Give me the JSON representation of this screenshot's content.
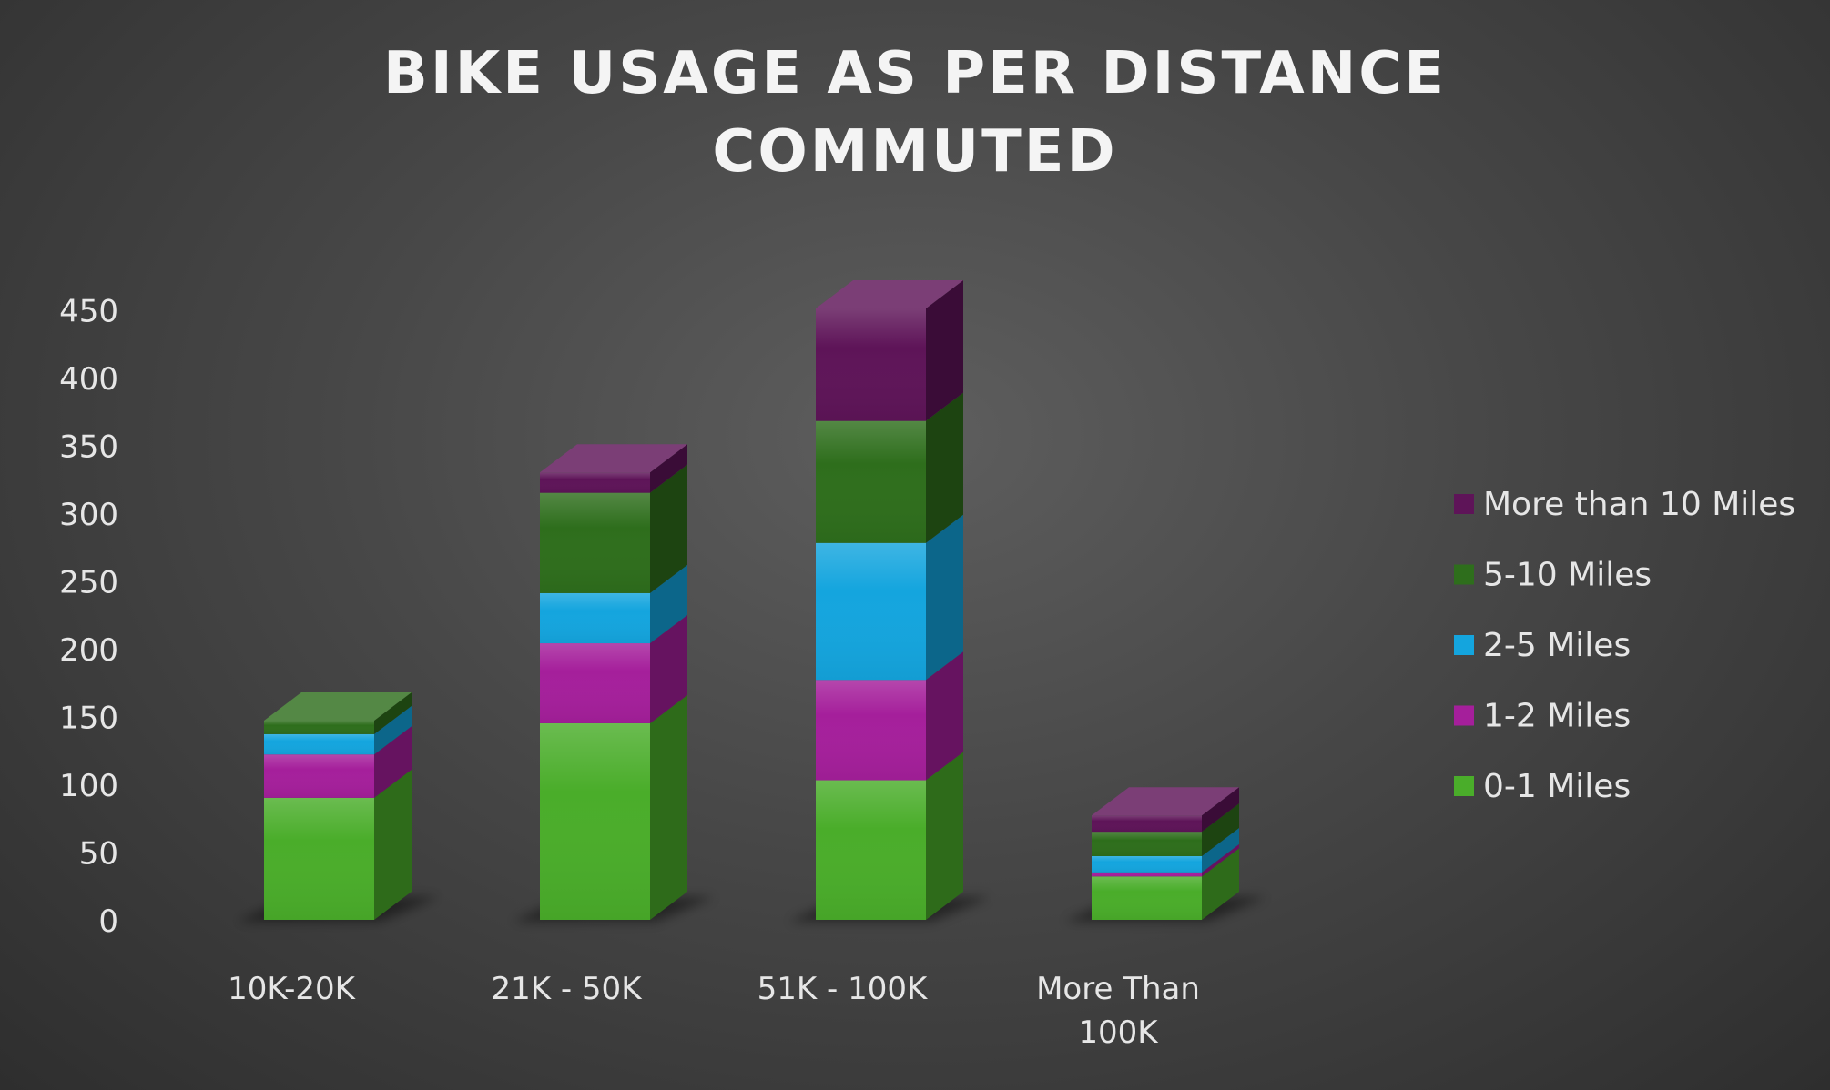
{
  "chart_data": {
    "type": "bar",
    "stacked": true,
    "three_d": true,
    "title": [
      "BIKE USAGE AS PER DISTANCE",
      "COMMUTED"
    ],
    "categories": [
      [
        "10K-20K"
      ],
      [
        "21K - 50K"
      ],
      [
        "51K - 100K"
      ],
      [
        "More Than",
        "100K"
      ]
    ],
    "series": [
      {
        "name": "0-1 Miles",
        "color": "#4aad2a",
        "values": [
          90,
          145,
          103,
          32
        ]
      },
      {
        "name": "1-2 Miles",
        "color": "#a51f9b",
        "values": [
          32,
          59,
          74,
          3
        ]
      },
      {
        "name": "2-5 Miles",
        "color": "#14a5de",
        "values": [
          15,
          37,
          101,
          12
        ]
      },
      {
        "name": "5-10 Miles",
        "color": "#2e6e1c",
        "values": [
          10,
          74,
          90,
          18
        ]
      },
      {
        "name": "More than 10 Miles",
        "color": "#5e1458",
        "values": [
          0,
          15,
          83,
          12
        ]
      }
    ],
    "ylim": [
      0,
      450
    ],
    "yticks": [
      0,
      50,
      100,
      150,
      200,
      250,
      300,
      350,
      400,
      450
    ],
    "legend_position": "right",
    "grid": false,
    "background": "#474747"
  }
}
